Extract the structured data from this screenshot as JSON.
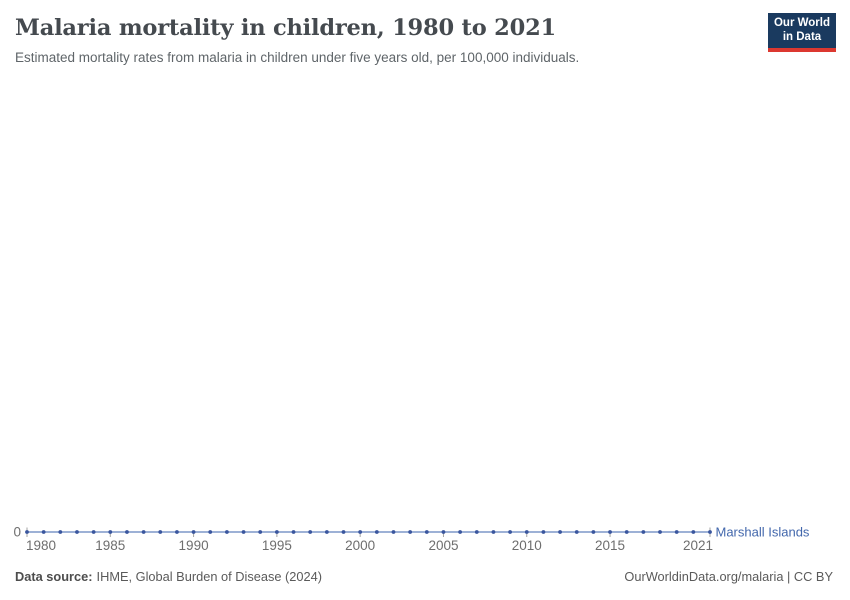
{
  "chart_data": {
    "type": "line",
    "title": "Malaria mortality in children, 1980 to 2021",
    "subtitle": "Estimated mortality rates from malaria in children under five years old, per 100,000 individuals.",
    "x": [
      1980,
      1981,
      1982,
      1983,
      1984,
      1985,
      1986,
      1987,
      1988,
      1989,
      1990,
      1991,
      1992,
      1993,
      1994,
      1995,
      1996,
      1997,
      1998,
      1999,
      2000,
      2001,
      2002,
      2003,
      2004,
      2005,
      2006,
      2007,
      2008,
      2009,
      2010,
      2011,
      2012,
      2013,
      2014,
      2015,
      2016,
      2017,
      2018,
      2019,
      2020,
      2021
    ],
    "x_tick_labels": [
      "1980",
      "1985",
      "1990",
      "1995",
      "2000",
      "2005",
      "2010",
      "2015",
      "2021"
    ],
    "y_ticks": [
      0
    ],
    "ylim": [
      0,
      0
    ],
    "grid": false,
    "legend_position": "end-of-line",
    "series": [
      {
        "name": "Marshall Islands",
        "values": [
          0,
          0,
          0,
          0,
          0,
          0,
          0,
          0,
          0,
          0,
          0,
          0,
          0,
          0,
          0,
          0,
          0,
          0,
          0,
          0,
          0,
          0,
          0,
          0,
          0,
          0,
          0,
          0,
          0,
          0,
          0,
          0,
          0,
          0,
          0,
          0,
          0,
          0,
          0,
          0,
          0,
          0
        ],
        "marker_color": "#3a569e",
        "line_color": "#7d97c9",
        "label_color": "#4267ac"
      }
    ]
  },
  "header": {
    "logo": {
      "line1": "Our World",
      "line2": "in Data",
      "bg_color": "#1a3a5f",
      "bar_color": "#dc3830"
    }
  },
  "footer": {
    "datasource_label": "Data source:",
    "datasource_value": "IHME, Global Burden of Disease (2024)",
    "attribution": "OurWorldinData.org/malaria | CC BY"
  }
}
